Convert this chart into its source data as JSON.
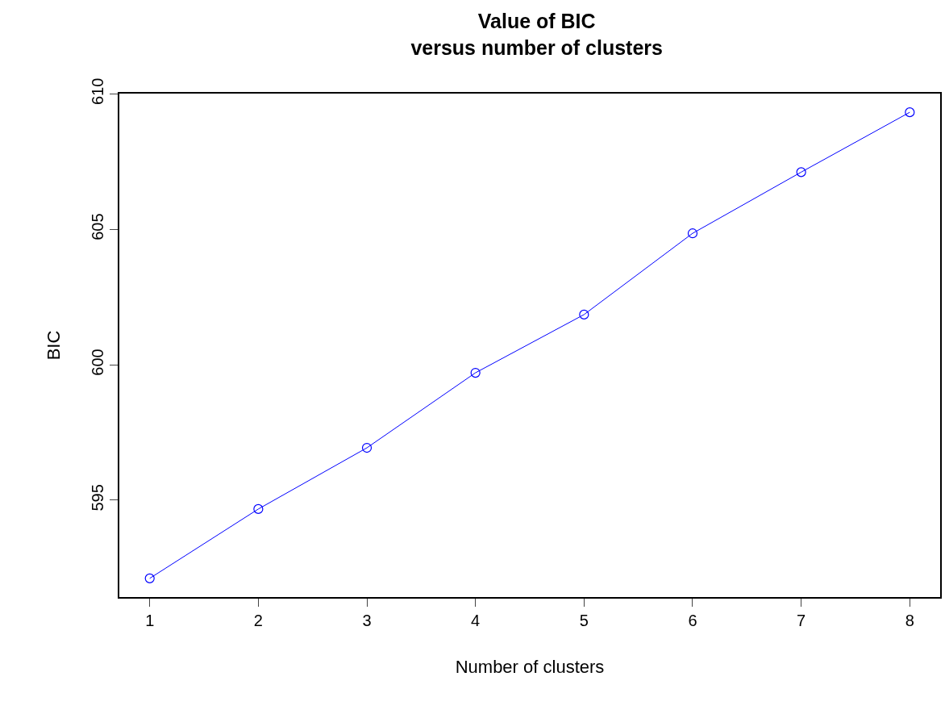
{
  "chart_data": {
    "type": "line",
    "title": "Value of BIC\nversus number of clusters",
    "xlabel": "Number of clusters",
    "ylabel": "BIC",
    "x": [
      1,
      2,
      3,
      4,
      5,
      6,
      7,
      8
    ],
    "series": [
      {
        "color": "#0000ff",
        "values": [
          592.11,
          594.67,
          596.93,
          599.7,
          601.85,
          604.85,
          607.11,
          609.32
        ]
      }
    ],
    "xlim": [
      0.72,
      8.28
    ],
    "xticks": [
      1,
      2,
      3,
      4,
      5,
      6,
      7,
      8
    ],
    "ylim": [
      591.42,
      610.01
    ],
    "yticks": [
      595,
      600,
      605,
      610
    ],
    "marker": "circle",
    "line_style": "solid"
  }
}
